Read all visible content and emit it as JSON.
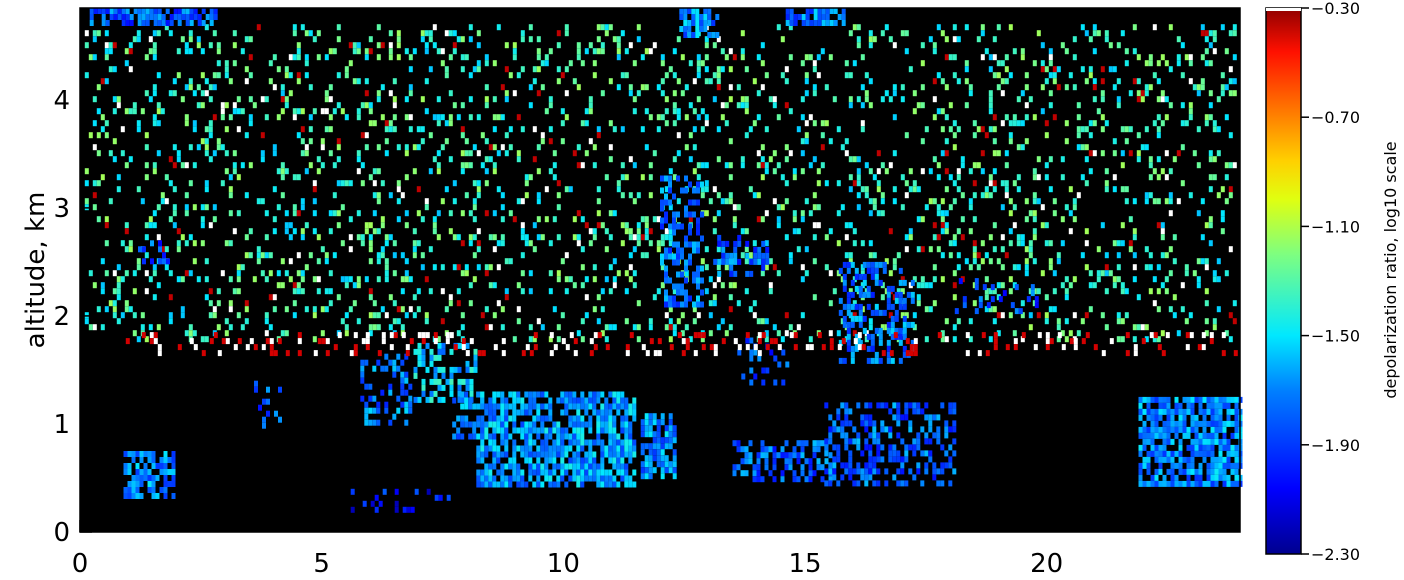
{
  "chart_data": {
    "type": "heatmap",
    "title": "",
    "xlabel": "",
    "ylabel": "altitude, km",
    "xlim": [
      0,
      24
    ],
    "ylim": [
      0,
      4.85
    ],
    "x_ticks": [
      0,
      5,
      10,
      15,
      20
    ],
    "x_tick_labels": [
      "0",
      "5",
      "10",
      "15",
      "20"
    ],
    "y_ticks": [
      0,
      1,
      2,
      3,
      4
    ],
    "y_tick_labels": [
      "0",
      "1",
      "2",
      "3",
      "4"
    ],
    "grid": false,
    "colorbar": {
      "label": "depolarization ratio, log10 scale",
      "range": [
        -2.3,
        -0.3
      ],
      "ticks": [
        -0.3,
        -0.7,
        -1.1,
        -1.5,
        -1.9,
        -2.3
      ],
      "tick_labels": [
        "−0.30",
        "−0.70",
        "−1.10",
        "−1.50",
        "−1.90",
        "−2.30"
      ],
      "colormap": "rainbow (dark blue to dark red)",
      "out_of_range_color": "#ffffff"
    },
    "regions": [
      {
        "x": [
          0.1,
          23.9
        ],
        "y": [
          1.8,
          4.7
        ],
        "value": -1.35,
        "density": "scattered",
        "desc": "mid-level speckle"
      },
      {
        "x": [
          0.2,
          2.8
        ],
        "y": [
          4.72,
          4.85
        ],
        "value": -1.8,
        "density": "dense"
      },
      {
        "x": [
          12.4,
          13.2
        ],
        "y": [
          4.6,
          4.85
        ],
        "value": -1.7,
        "density": "dense"
      },
      {
        "x": [
          14.6,
          15.8
        ],
        "y": [
          4.7,
          4.85
        ],
        "value": -1.75,
        "density": "dense"
      },
      {
        "x": [
          8.2,
          11.5
        ],
        "y": [
          0.45,
          1.3
        ],
        "value": -1.65,
        "density": "dense"
      },
      {
        "x": [
          11.6,
          12.3
        ],
        "y": [
          0.5,
          1.1
        ],
        "value": -1.7,
        "density": "dense"
      },
      {
        "x": [
          12.0,
          12.9
        ],
        "y": [
          2.1,
          3.3
        ],
        "value": -1.75,
        "density": "medium"
      },
      {
        "x": [
          13.1,
          14.2
        ],
        "y": [
          2.4,
          2.75
        ],
        "value": -1.8,
        "density": "medium"
      },
      {
        "x": [
          15.7,
          17.2
        ],
        "y": [
          1.6,
          2.5
        ],
        "value": -1.75,
        "density": "medium"
      },
      {
        "x": [
          5.8,
          6.8
        ],
        "y": [
          1.0,
          1.65
        ],
        "value": -1.75,
        "density": "medium"
      },
      {
        "x": [
          6.9,
          8.2
        ],
        "y": [
          1.25,
          1.75
        ],
        "value": -1.55,
        "density": "medium"
      },
      {
        "x": [
          7.7,
          8.3
        ],
        "y": [
          0.9,
          1.3
        ],
        "value": -1.7,
        "density": "medium"
      },
      {
        "x": [
          0.9,
          1.9
        ],
        "y": [
          0.35,
          0.75
        ],
        "value": -1.7,
        "density": "dense"
      },
      {
        "x": [
          3.6,
          4.1
        ],
        "y": [
          1.0,
          1.4
        ],
        "value": -1.8,
        "density": "sparse"
      },
      {
        "x": [
          13.5,
          15.5
        ],
        "y": [
          0.5,
          0.85
        ],
        "value": -1.8,
        "density": "medium"
      },
      {
        "x": [
          15.4,
          18.1
        ],
        "y": [
          0.45,
          1.2
        ],
        "value": -1.8,
        "density": "medium"
      },
      {
        "x": [
          21.9,
          24.0
        ],
        "y": [
          0.45,
          1.25
        ],
        "value": -1.7,
        "density": "dense"
      },
      {
        "x": [
          13.6,
          14.6
        ],
        "y": [
          1.4,
          1.8
        ],
        "value": -1.85,
        "density": "sparse"
      },
      {
        "x": [
          18.1,
          19.8
        ],
        "y": [
          2.05,
          2.35
        ],
        "value": -1.85,
        "density": "sparse"
      },
      {
        "x": [
          1.2,
          1.8
        ],
        "y": [
          2.5,
          2.7
        ],
        "value": -1.85,
        "density": "medium"
      },
      {
        "x": [
          5.6,
          7.6
        ],
        "y": [
          0.2,
          0.4
        ],
        "value": -2.0,
        "density": "sparse"
      },
      {
        "x": [
          0.7,
          24.0
        ],
        "y": [
          1.65,
          1.85
        ],
        "value": "above -0.30",
        "density": "scattered"
      }
    ]
  }
}
